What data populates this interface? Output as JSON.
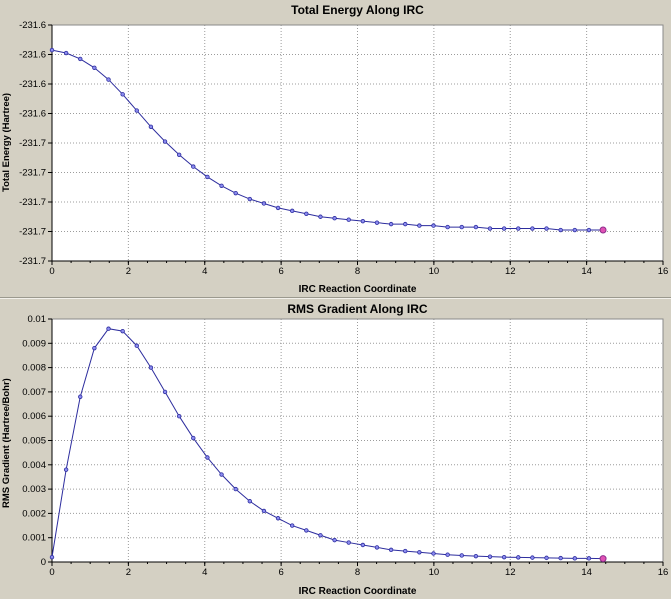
{
  "page": {
    "bg": "#d4d0c3"
  },
  "chart_data": [
    {
      "type": "line",
      "title": "Total Energy Along IRC",
      "xlabel": "IRC Reaction Coordinate",
      "ylabel": "Total Energy (Hartree)",
      "xlim": [
        0,
        16
      ],
      "ylim": [
        -231.74,
        -231.58
      ],
      "xticks": [
        0,
        2,
        4,
        6,
        8,
        10,
        12,
        14,
        16
      ],
      "xtick_labels": [
        "0",
        "2",
        "4",
        "6",
        "8",
        "10",
        "12",
        "14",
        "16"
      ],
      "x_minor_step": 0.5,
      "yticks": [
        -231.58,
        -231.6,
        -231.62,
        -231.64,
        -231.66,
        -231.68,
        -231.7,
        -231.72,
        -231.74
      ],
      "ytick_labels": [
        "-231.6",
        "-231.6",
        "-231.6",
        "-231.6",
        "-231.7",
        "-231.7",
        "-231.7",
        "-231.7",
        "-231.7"
      ],
      "grid": "dotted",
      "legend": "none",
      "line_color": "#2d2d9e",
      "marker_color": "#8c8cf0",
      "marker_edge": "#2d2d9e",
      "final_marker_color": "#e052b4",
      "final_marker_edge": "#8c2d8c",
      "x": [
        0,
        0.37,
        0.74,
        1.11,
        1.48,
        1.85,
        2.22,
        2.59,
        2.96,
        3.33,
        3.7,
        4.07,
        4.44,
        4.81,
        5.18,
        5.55,
        5.92,
        6.29,
        6.66,
        7.03,
        7.4,
        7.77,
        8.14,
        8.51,
        8.88,
        9.25,
        9.62,
        9.99,
        10.36,
        10.73,
        11.1,
        11.47,
        11.84,
        12.21,
        12.58,
        12.95,
        13.32,
        13.69,
        14.06,
        14.43
      ],
      "y": [
        -231.597,
        -231.599,
        -231.603,
        -231.609,
        -231.617,
        -231.627,
        -231.638,
        -231.649,
        -231.659,
        -231.668,
        -231.676,
        -231.683,
        -231.689,
        -231.694,
        -231.698,
        -231.701,
        -231.704,
        -231.706,
        -231.708,
        -231.71,
        -231.711,
        -231.712,
        -231.713,
        -231.714,
        -231.715,
        -231.715,
        -231.716,
        -231.716,
        -231.717,
        -231.717,
        -231.717,
        -231.718,
        -231.718,
        -231.718,
        -231.718,
        -231.718,
        -231.719,
        -231.719,
        -231.719,
        -231.719
      ]
    },
    {
      "type": "line",
      "title": "RMS Gradient Along IRC",
      "xlabel": "IRC Reaction Coordinate",
      "ylabel": "RMS Gradient (Hartree/Bohr)",
      "xlim": [
        0,
        16
      ],
      "ylim": [
        0,
        0.01
      ],
      "xticks": [
        0,
        2,
        4,
        6,
        8,
        10,
        12,
        14,
        16
      ],
      "xtick_labels": [
        "0",
        "2",
        "4",
        "6",
        "8",
        "10",
        "12",
        "14",
        "16"
      ],
      "x_minor_step": 0.5,
      "yticks": [
        0.01,
        0.009,
        0.008,
        0.007,
        0.006,
        0.005,
        0.004,
        0.003,
        0.002,
        0.001,
        0
      ],
      "ytick_labels": [
        "0.01",
        "0.009",
        "0.008",
        "0.007",
        "0.006",
        "0.005",
        "0.004",
        "0.003",
        "0.002",
        "0.001",
        "0"
      ],
      "grid": "dotted",
      "legend": "none",
      "line_color": "#2d2d9e",
      "marker_color": "#8c8cf0",
      "marker_edge": "#2d2d9e",
      "final_marker_color": "#e052b4",
      "final_marker_edge": "#8c2d8c",
      "x": [
        0,
        0.37,
        0.74,
        1.11,
        1.48,
        1.85,
        2.22,
        2.59,
        2.96,
        3.33,
        3.7,
        4.07,
        4.44,
        4.81,
        5.18,
        5.55,
        5.92,
        6.29,
        6.66,
        7.03,
        7.4,
        7.77,
        8.14,
        8.51,
        8.88,
        9.25,
        9.62,
        9.99,
        10.36,
        10.73,
        11.1,
        11.47,
        11.84,
        12.21,
        12.58,
        12.95,
        13.32,
        13.69,
        14.06,
        14.43
      ],
      "y": [
        0.0002,
        0.0038,
        0.0068,
        0.0088,
        0.0096,
        0.0095,
        0.0089,
        0.008,
        0.007,
        0.006,
        0.0051,
        0.0043,
        0.0036,
        0.003,
        0.0025,
        0.0021,
        0.0018,
        0.0015,
        0.0013,
        0.0011,
        0.0009,
        0.0008,
        0.0007,
        0.0006,
        0.0005,
        0.00045,
        0.0004,
        0.00035,
        0.0003,
        0.00027,
        0.00024,
        0.00022,
        0.0002,
        0.00019,
        0.00018,
        0.00017,
        0.00016,
        0.00015,
        0.00015,
        0.00014
      ]
    }
  ]
}
